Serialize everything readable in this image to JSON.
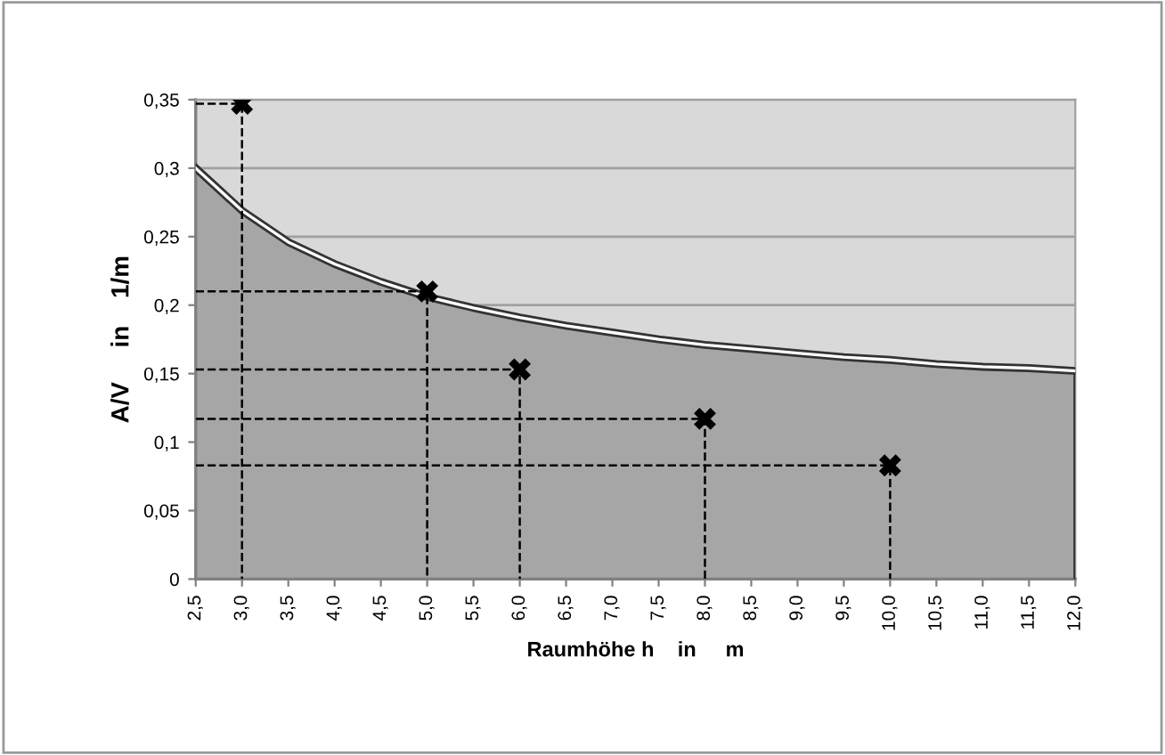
{
  "chart_data": {
    "type": "area",
    "xlabel": "Raumhöhe h    in     m",
    "ylabel": "A/V     in    1/m",
    "x": [
      2.5,
      3,
      3.5,
      4,
      4.5,
      5,
      5.5,
      6,
      6.5,
      7,
      7.5,
      8,
      8.5,
      9,
      9.5,
      10,
      10.5,
      11,
      11.5,
      12
    ],
    "series": [
      {
        "color": "#a6a6a6",
        "values": [
          0.3,
          0.269,
          0.246,
          0.23,
          0.217,
          0.206,
          0.198,
          0.191,
          0.185,
          0.18,
          0.175,
          0.171,
          0.168,
          0.165,
          0.162,
          0.16,
          0.157,
          0.155,
          0.154,
          0.152
        ]
      },
      {
        "type": "line",
        "color": "#000000",
        "line_style": "dashed",
        "x": [
          2.5,
          3,
          3
        ],
        "values": [
          0.347,
          0.347,
          0
        ]
      },
      {
        "type": "line",
        "color": "#000000",
        "line_style": "dashed",
        "x": [
          2.5,
          5,
          5
        ],
        "values": [
          0.21,
          0.21,
          0
        ]
      },
      {
        "type": "line",
        "color": "#000000",
        "line_style": "dashed",
        "x": [
          2.5,
          6,
          6
        ],
        "values": [
          0.153,
          0.153,
          0
        ]
      },
      {
        "type": "line",
        "color": "#000000",
        "line_style": "dashed",
        "x": [
          2.5,
          8,
          8
        ],
        "values": [
          0.117,
          0.117,
          0
        ]
      },
      {
        "type": "line",
        "color": "#000000",
        "line_style": "dashed",
        "x": [
          2.5,
          10,
          10
        ],
        "values": [
          0.083,
          0.083,
          0
        ]
      },
      {
        "type": "scatter",
        "color": "#000000",
        "marker": "cross",
        "x": [
          3,
          5,
          6,
          8,
          10
        ],
        "values": [
          0.347,
          0.21,
          0.153,
          0.117,
          0.083
        ]
      }
    ],
    "xlim": [
      2.5,
      12
    ],
    "xticks": [
      {
        "value": 2.5,
        "label": "2,5"
      },
      {
        "value": 3,
        "label": "3,0"
      },
      {
        "value": 3.5,
        "label": "3,5"
      },
      {
        "value": 4,
        "label": "4,0"
      },
      {
        "value": 4.5,
        "label": "4,5"
      },
      {
        "value": 5,
        "label": "5,0"
      },
      {
        "value": 5.5,
        "label": "5,5"
      },
      {
        "value": 6,
        "label": "6,0"
      },
      {
        "value": 6.5,
        "label": "6,5"
      },
      {
        "value": 7,
        "label": "7,0"
      },
      {
        "value": 7.5,
        "label": "7,5"
      },
      {
        "value": 8,
        "label": "8,0"
      },
      {
        "value": 8.5,
        "label": "8,5"
      },
      {
        "value": 9,
        "label": "9,0"
      },
      {
        "value": 9.5,
        "label": "9,5"
      },
      {
        "value": 10,
        "label": "10,0"
      },
      {
        "value": 10.5,
        "label": "10,5"
      },
      {
        "value": 11,
        "label": "11,0"
      },
      {
        "value": 11.5,
        "label": "11,5"
      },
      {
        "value": 12,
        "label": "12,0"
      }
    ],
    "ylim": [
      0,
      0.35
    ],
    "yticks": [
      0,
      {
        "value": 0.05,
        "label": "0,05"
      },
      {
        "value": 0.1,
        "label": "0,1"
      },
      {
        "value": 0.15,
        "label": "0,15"
      },
      {
        "value": 0.2,
        "label": "0,2"
      },
      {
        "value": 0.25,
        "label": "0,25"
      },
      {
        "value": 0.3,
        "label": "0,3"
      },
      {
        "value": 0.35,
        "label": "0,35"
      }
    ],
    "grid": "y",
    "legend": false
  }
}
